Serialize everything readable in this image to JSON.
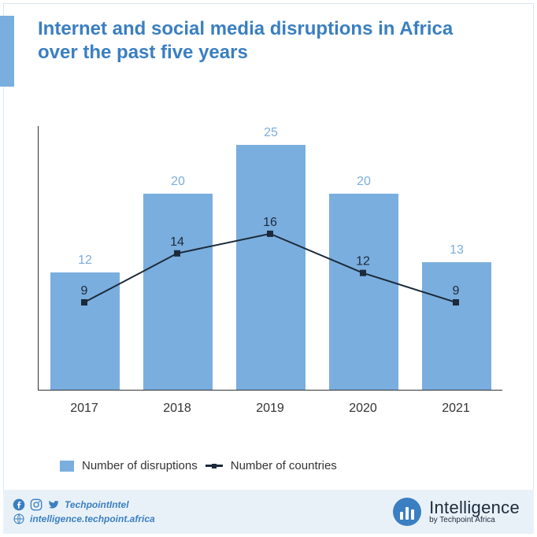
{
  "title": "Internet and social media disruptions in Africa over the past five years",
  "title_color": "#3a7fc1",
  "title_fontsize": 24,
  "accent_color": "#7aaede",
  "chart": {
    "type": "bar+line",
    "categories": [
      "2017",
      "2018",
      "2019",
      "2020",
      "2021"
    ],
    "bar_series": {
      "name": "Number of disruptions",
      "values": [
        12,
        20,
        25,
        20,
        13
      ],
      "color": "#7aaede",
      "label_color": "#7aaede",
      "bar_width_ratio": 0.75
    },
    "line_series": {
      "name": "Number of countries",
      "values": [
        9,
        14,
        16,
        12,
        9
      ],
      "color": "#1c2a3a",
      "marker_color": "#1c2a3a",
      "label_color": "#1c2a3a",
      "line_width": 2,
      "marker_size": 8
    },
    "ylim": [
      0,
      27
    ],
    "axis_color": "#333333",
    "xlabel_color": "#333333",
    "xlabel_fontsize": 16
  },
  "legend": {
    "bar_label": "Number of disruptions",
    "line_label": "Number of countries",
    "text_color": "#333333"
  },
  "footer": {
    "background": "#e9f1f8",
    "link_color": "#3a7fc1",
    "handle": "TechpointIntel",
    "url": "intelligence.techpoint.africa",
    "brand_main": "Intelligence",
    "brand_sub": "by Techpoint Africa",
    "brand_color": "#1c2a3a",
    "logo_circle_color": "#3a7fc1"
  }
}
